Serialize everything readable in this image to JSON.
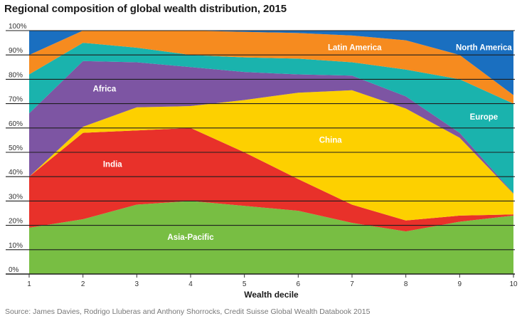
{
  "chart_data": {
    "type": "area",
    "stacked": true,
    "normalized": true,
    "title": "Regional composition of global wealth distribution, 2015",
    "xlabel": "Wealth decile",
    "ylabel": "",
    "x": [
      1,
      2,
      3,
      4,
      5,
      6,
      7,
      8,
      9,
      10
    ],
    "x_tick_labels": [
      "1",
      "2",
      "3",
      "4",
      "5",
      "6",
      "7",
      "8",
      "9",
      "10"
    ],
    "y_tick_labels": [
      "0%",
      "10%",
      "20%",
      "30%",
      "40%",
      "50%",
      "60%",
      "70%",
      "80%",
      "90%",
      "100%"
    ],
    "ylim": [
      0,
      100
    ],
    "grid": "horizontal",
    "series": [
      {
        "name": "Asia-Pacific",
        "color": "#78be43",
        "values": [
          19,
          22.5,
          28.5,
          30,
          28,
          26,
          21,
          17.5,
          21.5,
          24
        ]
      },
      {
        "name": "India",
        "color": "#e8312a",
        "values": [
          21,
          35.5,
          30.5,
          30,
          22,
          13,
          7.5,
          4.5,
          2.5,
          0.5
        ]
      },
      {
        "name": "China",
        "color": "#fdd000",
        "values": [
          0,
          2.5,
          9.5,
          9,
          21.5,
          35.5,
          47,
          46,
          32,
          8.5
        ]
      },
      {
        "name": "Africa",
        "color": "#7d55a3",
        "values": [
          26,
          27,
          18.5,
          16,
          11.5,
          7.5,
          6,
          5,
          2,
          0.2
        ]
      },
      {
        "name": "Europe",
        "color": "#1ab3ad",
        "values": [
          16,
          7.5,
          6,
          5,
          6,
          6.5,
          5.5,
          11,
          22,
          36.8
        ]
      },
      {
        "name": "Latin America",
        "color": "#f68b1f",
        "values": [
          8,
          5,
          7,
          10,
          10.5,
          10.5,
          11,
          12,
          10,
          3.5
        ]
      },
      {
        "name": "North America",
        "color": "#1a6fc0",
        "values": [
          10,
          0,
          0,
          0,
          0.5,
          1,
          2,
          4,
          10,
          26.5
        ]
      }
    ],
    "annotations": [
      {
        "text": "Asia-Pacific",
        "x": 4,
        "y": 14
      },
      {
        "text": "India",
        "x": 2.55,
        "y": 44
      },
      {
        "text": "China",
        "x": 6.6,
        "y": 54
      },
      {
        "text": "Africa",
        "x": 2.4,
        "y": 75
      },
      {
        "text": "Europe",
        "x": 9.45,
        "y": 63.5
      },
      {
        "text": "Latin America",
        "x": 7.05,
        "y": 92
      },
      {
        "text": "North America",
        "x": 9.45,
        "y": 92
      }
    ],
    "source": "Source: James Davies, Rodrigo Lluberas and Anthony Shorrocks, Credit Suisse Global Wealth Databook 2015"
  }
}
